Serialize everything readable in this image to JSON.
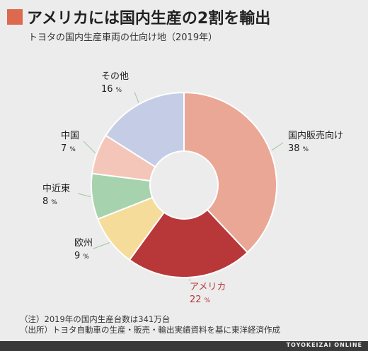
{
  "header": {
    "title": "アメリカには国内生産の2割を輸出",
    "subtitle": "トヨタの国内生産車両の仕向け地（2019年）"
  },
  "chart_data": {
    "type": "pie",
    "donut": true,
    "unit": "%",
    "slices": [
      {
        "name": "国内販売向け",
        "value": 38,
        "color": "#eaa795"
      },
      {
        "name": "アメリカ",
        "value": 22,
        "color": "#b8383a",
        "highlight": true
      },
      {
        "name": "欧州",
        "value": 9,
        "color": "#f5dc9a"
      },
      {
        "name": "中近東",
        "value": 8,
        "color": "#a6d2ad"
      },
      {
        "name": "中国",
        "value": 7,
        "color": "#f4c6b9"
      },
      {
        "name": "その他",
        "value": 16,
        "color": "#c5cde6"
      }
    ]
  },
  "notes": [
    "（注）2019年の国内生産台数は341万台",
    "（出所）トヨタ自動車の生産・販売・輸出実績資料を基に東洋経済作成"
  ],
  "footer": {
    "brand": "TOYOKEIZAI ONLINE"
  }
}
